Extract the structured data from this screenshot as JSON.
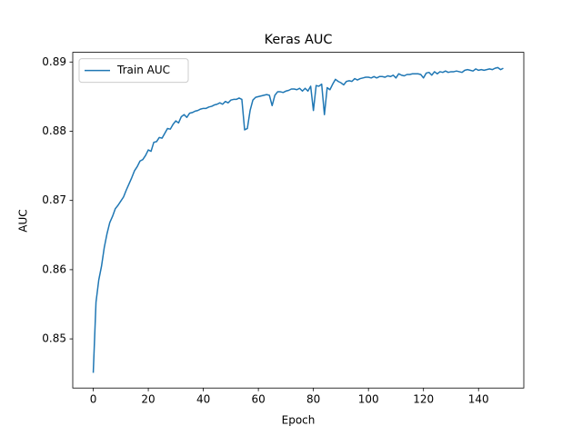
{
  "chart_data": {
    "type": "line",
    "title": "Keras AUC",
    "xlabel": "Epoch",
    "ylabel": "AUC",
    "x": [
      0,
      1,
      2,
      3,
      4,
      5,
      6,
      7,
      8,
      9,
      10,
      11,
      12,
      13,
      14,
      15,
      16,
      17,
      18,
      19,
      20,
      21,
      22,
      23,
      24,
      25,
      26,
      27,
      28,
      29,
      30,
      31,
      32,
      33,
      34,
      35,
      36,
      37,
      38,
      39,
      40,
      41,
      42,
      43,
      44,
      45,
      46,
      47,
      48,
      49,
      50,
      51,
      52,
      53,
      54,
      55,
      56,
      57,
      58,
      59,
      60,
      61,
      62,
      63,
      64,
      65,
      66,
      67,
      68,
      69,
      70,
      71,
      72,
      73,
      74,
      75,
      76,
      77,
      78,
      79,
      80,
      81,
      82,
      83,
      84,
      85,
      86,
      87,
      88,
      89,
      90,
      91,
      92,
      93,
      94,
      95,
      96,
      97,
      98,
      99,
      100,
      101,
      102,
      103,
      104,
      105,
      106,
      107,
      108,
      109,
      110,
      111,
      112,
      113,
      114,
      115,
      116,
      117,
      118,
      119,
      120,
      121,
      122,
      123,
      124,
      125,
      126,
      127,
      128,
      129,
      130,
      131,
      132,
      133,
      134,
      135,
      136,
      137,
      138,
      139,
      140,
      141,
      142,
      143,
      144,
      145,
      146,
      147,
      148,
      149
    ],
    "series": [
      {
        "name": "Train AUC",
        "color": "#1f77b4",
        "values": [
          0.8451,
          0.8553,
          0.8585,
          0.8605,
          0.8632,
          0.8652,
          0.8668,
          0.8677,
          0.8688,
          0.8693,
          0.8699,
          0.8705,
          0.8715,
          0.8724,
          0.8733,
          0.8743,
          0.8749,
          0.8757,
          0.8759,
          0.8765,
          0.8773,
          0.8771,
          0.8784,
          0.8785,
          0.8791,
          0.879,
          0.8797,
          0.8804,
          0.8803,
          0.881,
          0.8815,
          0.8812,
          0.8821,
          0.8824,
          0.882,
          0.8826,
          0.8827,
          0.8829,
          0.883,
          0.8832,
          0.8833,
          0.8833,
          0.8835,
          0.8836,
          0.8838,
          0.8839,
          0.8841,
          0.8839,
          0.8843,
          0.8841,
          0.8845,
          0.8846,
          0.8846,
          0.8848,
          0.8846,
          0.8802,
          0.8804,
          0.883,
          0.8845,
          0.8849,
          0.885,
          0.8851,
          0.8852,
          0.8853,
          0.8852,
          0.8837,
          0.8852,
          0.8857,
          0.8857,
          0.8856,
          0.8858,
          0.8859,
          0.8861,
          0.8861,
          0.886,
          0.8862,
          0.8858,
          0.8862,
          0.8858,
          0.8865,
          0.883,
          0.8866,
          0.8865,
          0.8868,
          0.8824,
          0.8863,
          0.886,
          0.8868,
          0.8875,
          0.8872,
          0.887,
          0.8867,
          0.8872,
          0.8873,
          0.8872,
          0.8876,
          0.8874,
          0.8876,
          0.8877,
          0.8878,
          0.8878,
          0.8877,
          0.8879,
          0.8877,
          0.8879,
          0.8879,
          0.8878,
          0.888,
          0.8879,
          0.8881,
          0.8877,
          0.8883,
          0.8881,
          0.888,
          0.8882,
          0.8882,
          0.8883,
          0.8883,
          0.8883,
          0.8882,
          0.8877,
          0.8884,
          0.8885,
          0.8881,
          0.8886,
          0.8883,
          0.8886,
          0.8885,
          0.8887,
          0.8885,
          0.8886,
          0.8886,
          0.8887,
          0.8886,
          0.8885,
          0.8888,
          0.8889,
          0.8888,
          0.8887,
          0.889,
          0.8888,
          0.8889,
          0.8888,
          0.8889,
          0.889,
          0.8889,
          0.8891,
          0.8892,
          0.8889,
          0.8891
        ]
      }
    ],
    "xlim": [
      -7.45,
      156.45
    ],
    "xticks": [
      0,
      20,
      40,
      60,
      80,
      100,
      120,
      140
    ],
    "ylim": [
      0.8429,
      0.8914
    ],
    "yticks": [
      0.85,
      0.86,
      0.87,
      0.88,
      0.89
    ],
    "legend": "upper left"
  }
}
